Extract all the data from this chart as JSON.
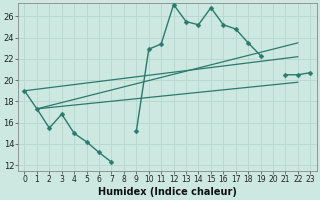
{
  "xlabel": "Humidex (Indice chaleur)",
  "ylabel": "",
  "xlim": [
    -0.5,
    23.5
  ],
  "ylim": [
    11.5,
    27.2
  ],
  "xticks": [
    0,
    1,
    2,
    3,
    4,
    5,
    6,
    7,
    8,
    9,
    10,
    11,
    12,
    13,
    14,
    15,
    16,
    17,
    18,
    19,
    20,
    21,
    22,
    23
  ],
  "yticks": [
    12,
    14,
    16,
    18,
    20,
    22,
    24,
    26
  ],
  "bg_color": "#cce8e0",
  "line_color": "#2a7a6e",
  "grid_color": "#b8d8d0",
  "main_series": {
    "x": [
      0,
      1,
      2,
      3,
      4,
      5,
      6,
      7,
      8,
      9,
      10,
      11,
      12,
      13,
      14,
      15,
      16,
      17,
      18,
      19,
      20,
      21,
      22,
      23
    ],
    "y": [
      19.0,
      17.3,
      15.5,
      16.8,
      15.0,
      14.2,
      13.2,
      12.3,
      null,
      15.2,
      22.9,
      23.4,
      27.1,
      25.5,
      25.2,
      26.8,
      25.2,
      24.8,
      23.5,
      22.3,
      null,
      20.5,
      20.5,
      20.7
    ]
  },
  "straight_lines": [
    {
      "x": [
        0,
        22
      ],
      "y": [
        19.0,
        22.2
      ]
    },
    {
      "x": [
        1,
        22
      ],
      "y": [
        17.3,
        23.5
      ]
    },
    {
      "x": [
        1,
        22
      ],
      "y": [
        17.3,
        19.8
      ]
    }
  ]
}
